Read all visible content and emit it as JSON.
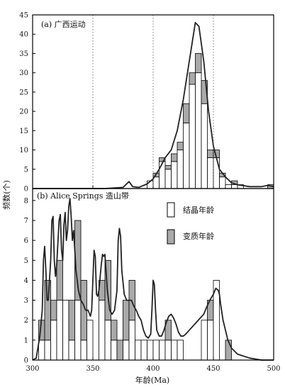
{
  "chart_data": {
    "type": "bar",
    "xlabel": "年龄(Ma)",
    "ylabel": "频数(个)",
    "xlim": [
      300,
      500
    ],
    "x_ticks": [
      300,
      350,
      400,
      450,
      500
    ],
    "bin_width": 5,
    "legend": {
      "position": "top-right of lower panel",
      "entries": [
        {
          "label": "结晶年龄",
          "color": "#ffffff"
        },
        {
          "label": "变质年龄",
          "color": "#a9a9a9"
        }
      ]
    },
    "panels": [
      {
        "title": "(a) 广西运动",
        "ylim": [
          0,
          45
        ],
        "y_ticks": [
          0,
          5,
          10,
          15,
          20,
          25,
          30,
          35,
          40,
          45
        ],
        "dotted_lines_x": [
          350,
          400,
          450
        ],
        "bins": [
          {
            "x": 395,
            "crystallization": 2,
            "metamorphic": 0
          },
          {
            "x": 400,
            "crystallization": 3,
            "metamorphic": 1
          },
          {
            "x": 405,
            "crystallization": 7,
            "metamorphic": 1
          },
          {
            "x": 410,
            "crystallization": 5,
            "metamorphic": 1
          },
          {
            "x": 415,
            "crystallization": 7,
            "metamorphic": 2
          },
          {
            "x": 420,
            "crystallization": 10,
            "metamorphic": 2
          },
          {
            "x": 425,
            "crystallization": 17,
            "metamorphic": 5
          },
          {
            "x": 430,
            "crystallization": 27,
            "metamorphic": 3
          },
          {
            "x": 435,
            "crystallization": 30,
            "metamorphic": 5
          },
          {
            "x": 440,
            "crystallization": 22,
            "metamorphic": 6
          },
          {
            "x": 445,
            "crystallization": 8,
            "metamorphic": 2
          },
          {
            "x": 450,
            "crystallization": 8,
            "metamorphic": 2
          },
          {
            "x": 455,
            "crystallization": 3,
            "metamorphic": 1
          },
          {
            "x": 460,
            "crystallization": 1,
            "metamorphic": 0
          },
          {
            "x": 465,
            "crystallization": 1,
            "metamorphic": 1
          },
          {
            "x": 470,
            "crystallization": 1,
            "metamorphic": 0
          },
          {
            "x": 495,
            "crystallization": 0,
            "metamorphic": 1
          }
        ],
        "curve": [
          [
            300,
            0
          ],
          [
            360,
            0
          ],
          [
            375,
            0.3
          ],
          [
            380,
            1.8
          ],
          [
            383,
            0.5
          ],
          [
            388,
            0.3
          ],
          [
            395,
            1.2
          ],
          [
            400,
            2.5
          ],
          [
            405,
            5
          ],
          [
            410,
            8
          ],
          [
            415,
            10
          ],
          [
            420,
            15
          ],
          [
            425,
            23
          ],
          [
            430,
            33
          ],
          [
            435,
            43
          ],
          [
            438,
            42
          ],
          [
            442,
            33
          ],
          [
            446,
            20
          ],
          [
            450,
            11
          ],
          [
            455,
            5
          ],
          [
            460,
            3
          ],
          [
            465,
            1.5
          ],
          [
            470,
            1
          ],
          [
            480,
            0.5
          ],
          [
            490,
            0.5
          ],
          [
            495,
            0.8
          ],
          [
            500,
            0.5
          ]
        ]
      },
      {
        "title": "(b) Alice Springs 造山带",
        "ylim": [
          0,
          8.6
        ],
        "y_ticks": [
          0,
          1,
          2,
          3,
          4,
          5,
          6,
          7,
          8
        ],
        "bins": [
          {
            "x": 305,
            "crystallization": 1,
            "metamorphic": 1
          },
          {
            "x": 310,
            "crystallization": 1,
            "metamorphic": 3
          },
          {
            "x": 315,
            "crystallization": 2,
            "metamorphic": 1
          },
          {
            "x": 320,
            "crystallization": 3,
            "metamorphic": 2
          },
          {
            "x": 325,
            "crystallization": 3,
            "metamorphic": 0
          },
          {
            "x": 330,
            "crystallization": 1,
            "metamorphic": 2
          },
          {
            "x": 335,
            "crystallization": 3,
            "metamorphic": 4
          },
          {
            "x": 340,
            "crystallization": 1,
            "metamorphic": 3
          },
          {
            "x": 345,
            "crystallization": 2,
            "metamorphic": 0
          },
          {
            "x": 350,
            "crystallization": 0,
            "metamorphic": 0
          },
          {
            "x": 355,
            "crystallization": 3,
            "metamorphic": 1
          },
          {
            "x": 360,
            "crystallization": 2,
            "metamorphic": 3
          },
          {
            "x": 365,
            "crystallization": 1,
            "metamorphic": 1
          },
          {
            "x": 370,
            "crystallization": 0,
            "metamorphic": 1
          },
          {
            "x": 375,
            "crystallization": 1,
            "metamorphic": 2
          },
          {
            "x": 380,
            "crystallization": 2,
            "metamorphic": 2
          },
          {
            "x": 385,
            "crystallization": 1,
            "metamorphic": 0
          },
          {
            "x": 390,
            "crystallization": 1,
            "metamorphic": 0
          },
          {
            "x": 395,
            "crystallization": 1,
            "metamorphic": 0
          },
          {
            "x": 400,
            "crystallization": 1,
            "metamorphic": 0
          },
          {
            "x": 405,
            "crystallization": 1,
            "metamorphic": 0
          },
          {
            "x": 410,
            "crystallization": 1,
            "metamorphic": 1
          },
          {
            "x": 415,
            "crystallization": 1,
            "metamorphic": 0
          },
          {
            "x": 420,
            "crystallization": 1,
            "metamorphic": 0
          },
          {
            "x": 440,
            "crystallization": 2,
            "metamorphic": 0
          },
          {
            "x": 445,
            "crystallization": 2,
            "metamorphic": 1
          },
          {
            "x": 450,
            "crystallization": 4,
            "metamorphic": 0
          },
          {
            "x": 460,
            "crystallization": 0,
            "metamorphic": 1
          }
        ],
        "curve": [
          [
            300,
            0
          ],
          [
            303,
            0.1
          ],
          [
            306,
            1.2
          ],
          [
            308,
            2.5
          ],
          [
            309,
            5
          ],
          [
            310,
            5.7
          ],
          [
            311,
            4.5
          ],
          [
            312,
            3
          ],
          [
            313,
            3
          ],
          [
            315,
            5
          ],
          [
            316,
            7
          ],
          [
            317,
            7.2
          ],
          [
            318,
            5
          ],
          [
            319,
            4.2
          ],
          [
            320,
            4.8
          ],
          [
            322,
            7
          ],
          [
            323,
            7.3
          ],
          [
            324,
            5.5
          ],
          [
            325,
            5
          ],
          [
            326,
            6.8
          ],
          [
            327,
            7.4
          ],
          [
            328,
            6
          ],
          [
            329,
            6.5
          ],
          [
            330,
            7.7
          ],
          [
            331,
            8.1
          ],
          [
            332,
            7.2
          ],
          [
            333,
            6
          ],
          [
            334,
            6.5
          ],
          [
            335,
            5.5
          ],
          [
            336,
            4.5
          ],
          [
            338,
            3.5
          ],
          [
            340,
            3
          ],
          [
            342,
            2.8
          ],
          [
            344,
            2.5
          ],
          [
            346,
            2.5
          ],
          [
            348,
            2.2
          ],
          [
            349,
            2.5
          ],
          [
            351,
            5.5
          ],
          [
            352,
            5.2
          ],
          [
            353,
            3.3
          ],
          [
            354,
            3.2
          ],
          [
            355,
            3.5
          ],
          [
            357,
            4.8
          ],
          [
            358,
            5.3
          ],
          [
            359,
            5.2
          ],
          [
            360,
            5.3
          ],
          [
            362,
            3.5
          ],
          [
            364,
            2.5
          ],
          [
            366,
            2.3
          ],
          [
            368,
            2.5
          ],
          [
            370,
            3.5
          ],
          [
            371,
            6
          ],
          [
            372,
            6.6
          ],
          [
            373,
            6.2
          ],
          [
            374,
            4.5
          ],
          [
            376,
            3.3
          ],
          [
            378,
            3
          ],
          [
            380,
            3
          ],
          [
            382,
            3
          ],
          [
            384,
            2.7
          ],
          [
            386,
            2.5
          ],
          [
            388,
            2.2
          ],
          [
            390,
            2
          ],
          [
            392,
            1.5
          ],
          [
            394,
            1.2
          ],
          [
            396,
            1.1
          ],
          [
            398,
            1.3
          ],
          [
            399,
            2.5
          ],
          [
            400,
            4
          ],
          [
            401,
            3.8
          ],
          [
            402,
            2.5
          ],
          [
            403,
            1.5
          ],
          [
            405,
            1.2
          ],
          [
            407,
            1.2
          ],
          [
            409,
            1.5
          ],
          [
            411,
            1.9
          ],
          [
            413,
            2.2
          ],
          [
            415,
            2.3
          ],
          [
            417,
            2.1
          ],
          [
            419,
            1.8
          ],
          [
            421,
            1.4
          ],
          [
            423,
            1.2
          ],
          [
            425,
            1.2
          ],
          [
            427,
            1.3
          ],
          [
            430,
            1.5
          ],
          [
            433,
            1.7
          ],
          [
            436,
            1.9
          ],
          [
            439,
            2.1
          ],
          [
            442,
            2.3
          ],
          [
            444,
            2.6
          ],
          [
            447,
            3
          ],
          [
            450,
            3.3
          ],
          [
            452,
            3.6
          ],
          [
            454,
            3.5
          ],
          [
            455,
            3.3
          ],
          [
            456,
            2.8
          ],
          [
            458,
            2
          ],
          [
            460,
            1.5
          ],
          [
            462,
            1
          ],
          [
            465,
            0.6
          ],
          [
            470,
            0.3
          ],
          [
            480,
            0.1
          ],
          [
            490,
            0
          ],
          [
            500,
            0
          ]
        ]
      }
    ]
  }
}
